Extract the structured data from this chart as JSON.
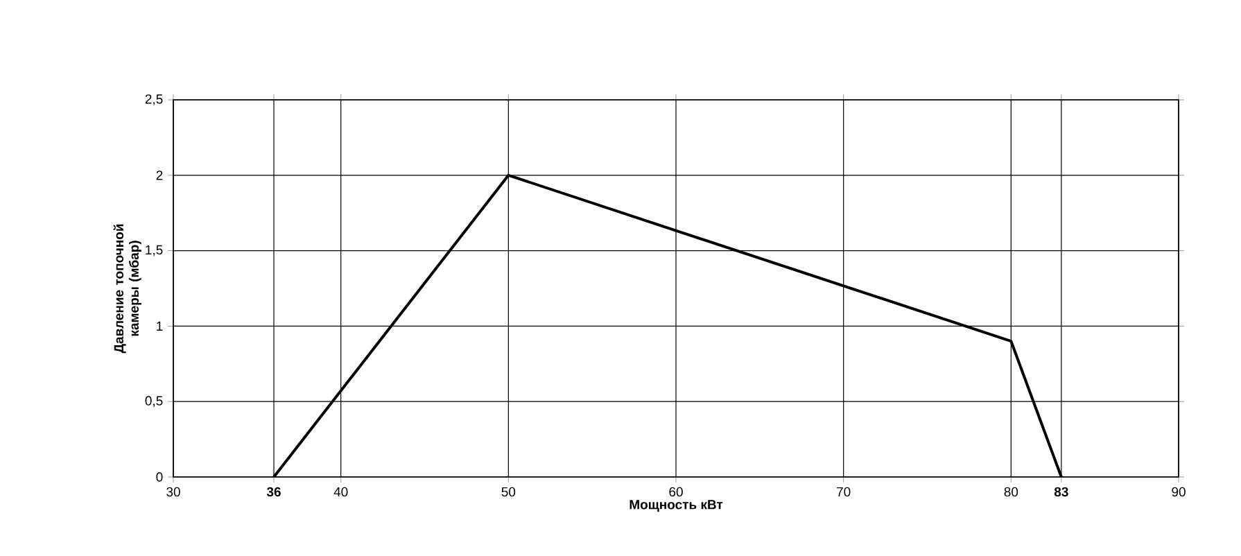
{
  "chart_data": {
    "type": "line",
    "xlabel": "Мощность кВт",
    "ylabel": "Давление топочной камеры (мбар)",
    "series": [
      {
        "color": "#000000",
        "x": [
          36,
          50,
          80,
          83
        ],
        "values": [
          0,
          2,
          0.9,
          0
        ]
      }
    ],
    "xlim": [
      30,
      90
    ],
    "xticks": [
      30,
      {
        "value": 36,
        "label": "**36**"
      },
      40,
      50,
      60,
      70,
      80,
      {
        "value": 83,
        "label": "**83**"
      },
      90
    ],
    "ylim": [
      0,
      2.5
    ],
    "yticks": [
      0,
      {
        "value": 0.5,
        "label": "0,5"
      },
      1,
      {
        "value": 1.5,
        "label": "1,5"
      },
      2,
      {
        "value": 2.5,
        "label": "2,5"
      }
    ],
    "grid": true,
    "marker": "none",
    "line_style": "solid",
    "legend": false
  }
}
